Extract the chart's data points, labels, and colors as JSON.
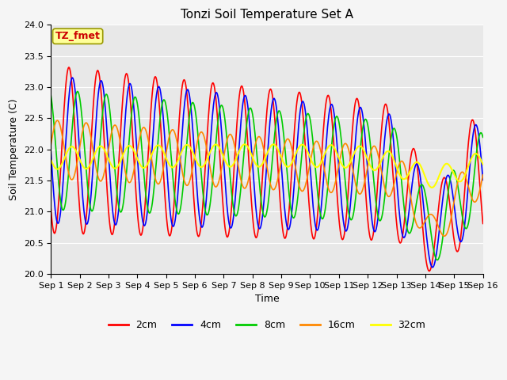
{
  "title": "Tonzi Soil Temperature Set A",
  "xlabel": "Time",
  "ylabel": "Soil Temperature (C)",
  "annotation": "TZ_fmet",
  "ylim": [
    20.0,
    24.0
  ],
  "yticks": [
    20.0,
    20.5,
    21.0,
    21.5,
    22.0,
    22.5,
    23.0,
    23.5,
    24.0
  ],
  "x_tick_labels": [
    "Sep 1",
    "Sep 2",
    "Sep 3",
    "Sep 4",
    "Sep 5",
    "Sep 6",
    "Sep 7",
    "Sep 8",
    "Sep 9",
    "Sep 10",
    "Sep 11",
    "Sep 12",
    "Sep 13",
    "Sep 14",
    "Sep 15",
    "Sep 16"
  ],
  "series": {
    "2cm": {
      "color": "#ff0000",
      "lw": 1.2
    },
    "4cm": {
      "color": "#0000ff",
      "lw": 1.2
    },
    "8cm": {
      "color": "#00cc00",
      "lw": 1.2
    },
    "16cm": {
      "color": "#ff8800",
      "lw": 1.2
    },
    "32cm": {
      "color": "#ffff00",
      "lw": 1.5
    }
  },
  "legend_labels": [
    "2cm",
    "4cm",
    "8cm",
    "16cm",
    "32cm"
  ],
  "plot_bg": "#e8e8e8",
  "fig_bg": "#f5f5f5",
  "annotation_bg": "#ffff99",
  "annotation_border": "#999900",
  "annotation_fg": "#cc0000",
  "grid_color": "#ffffff",
  "title_fontsize": 11,
  "label_fontsize": 9,
  "tick_fontsize": 8,
  "legend_fontsize": 9
}
